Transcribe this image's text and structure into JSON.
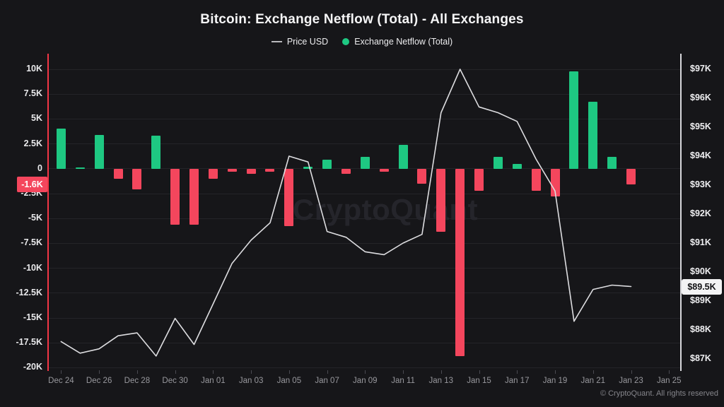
{
  "header": {
    "title": "Bitcoin: Exchange Netflow (Total) - All Exchanges"
  },
  "legend": [
    {
      "label": "Price USD",
      "swatch": "line",
      "color": "#b9b9bd"
    },
    {
      "label": "Exchange Netflow (Total)",
      "swatch": "dot",
      "color": "#1ec882"
    }
  ],
  "watermark": "CryptoQuant",
  "footer": {
    "copyright": "© CryptoQuant. All rights reserved"
  },
  "badges": {
    "netflow": {
      "label": "-1.6K",
      "value": -1.6
    },
    "price": {
      "label": "$89.5K",
      "value": 89.5
    }
  },
  "colors": {
    "background": "#161619",
    "netflow_positive": "#1ec882",
    "netflow_negative": "#f4465d",
    "price_line": "#dddde0",
    "left_axis_line": "#f23645",
    "right_axis_line": "#d8d8dc",
    "gridline": "#242428"
  },
  "chart_data": {
    "type": "bar+line",
    "title": "Bitcoin: Exchange Netflow (Total) - All Exchanges",
    "categories": [
      "Dec 24",
      "Dec 25",
      "Dec 26",
      "Dec 27",
      "Dec 28",
      "Dec 29",
      "Dec 30",
      "Dec 31",
      "Jan 01",
      "Jan 02",
      "Jan 03",
      "Jan 04",
      "Jan 05",
      "Jan 06",
      "Jan 07",
      "Jan 08",
      "Jan 09",
      "Jan 10",
      "Jan 11",
      "Jan 12",
      "Jan 13",
      "Jan 14",
      "Jan 15",
      "Jan 16",
      "Jan 17",
      "Jan 18",
      "Jan 19",
      "Jan 20",
      "Jan 21",
      "Jan 22",
      "Jan 23"
    ],
    "series": [
      {
        "name": "Exchange Netflow (Total)",
        "type": "bar",
        "unit": "K BTC",
        "values": [
          4.0,
          0.1,
          3.4,
          -1.0,
          -2.1,
          3.3,
          -5.6,
          -5.6,
          -1.0,
          -0.3,
          -0.5,
          -0.3,
          -5.8,
          0.2,
          0.9,
          -0.5,
          1.2,
          -0.3,
          2.4,
          -1.5,
          -6.3,
          -18.8,
          -2.2,
          1.2,
          0.5,
          -2.2,
          -2.8,
          9.8,
          6.7,
          1.2,
          -1.6
        ]
      },
      {
        "name": "Price USD",
        "type": "line",
        "unit": "K USD",
        "values": [
          87.6,
          87.2,
          87.35,
          87.8,
          87.9,
          87.1,
          88.4,
          87.5,
          88.9,
          90.3,
          91.1,
          91.7,
          94.0,
          93.8,
          91.4,
          91.2,
          90.7,
          90.6,
          91.0,
          91.3,
          95.5,
          97.0,
          95.7,
          95.5,
          95.2,
          93.9,
          92.8,
          88.3,
          89.4,
          89.55,
          89.5
        ]
      }
    ],
    "left_axis": {
      "label": "Exchange Netflow (Total)",
      "tick_labels": [
        "10K",
        "7.5K",
        "5K",
        "2.5K",
        "0",
        "-2.5K",
        "-5K",
        "-7.5K",
        "-10K",
        "-12.5K",
        "-15K",
        "-17.5K",
        "-20K"
      ],
      "tick_values": [
        10,
        7.5,
        5,
        2.5,
        0,
        -2.5,
        -5,
        -7.5,
        -10,
        -12.5,
        -15,
        -17.5,
        -20
      ],
      "range": [
        -20,
        10
      ],
      "grid": true
    },
    "right_axis": {
      "label": "Price USD",
      "tick_labels": [
        "$97K",
        "$96K",
        "$95K",
        "$94K",
        "$93K",
        "$92K",
        "$91K",
        "$90K",
        "$89K",
        "$88K",
        "$87K"
      ],
      "tick_values": [
        97,
        96,
        95,
        94,
        93,
        92,
        91,
        90,
        89,
        88,
        87
      ],
      "range": [
        87,
        97
      ]
    },
    "x_axis": {
      "tick_labels": [
        "Dec 24",
        "Dec 26",
        "Dec 28",
        "Dec 30",
        "Jan 01",
        "Jan 03",
        "Jan 05",
        "Jan 07",
        "Jan 09",
        "Jan 11",
        "Jan 13",
        "Jan 15",
        "Jan 17",
        "Jan 19",
        "Jan 21",
        "Jan 23",
        "Jan 25"
      ],
      "tick_every": 2,
      "trailing_empty_days": 2
    },
    "legend_position": "top"
  }
}
